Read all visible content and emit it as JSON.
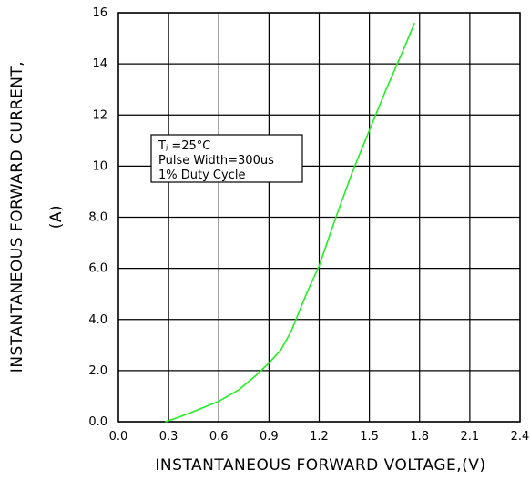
{
  "chart_data": {
    "type": "line",
    "xlabel": "INSTANTANEOUS FORWARD VOLTAGE,(V)",
    "ylabel": "INSTANTANEOUS FORWARD CURRENT,",
    "ylabel_unit": "(A)",
    "xlim": [
      0.0,
      2.4
    ],
    "ylim": [
      0,
      16
    ],
    "x_ticks": [
      "0.0",
      "0.3",
      "0.6",
      "0.9",
      "1.2",
      "1.5",
      "1.8",
      "2.1",
      "2.4"
    ],
    "x_tick_values": [
      0.0,
      0.3,
      0.6,
      0.9,
      1.2,
      1.5,
      1.8,
      2.1,
      2.4
    ],
    "y_ticks": [
      "0.0",
      "2.0",
      "4.0",
      "6.0",
      "8.0",
      "10",
      "12",
      "14",
      "16"
    ],
    "y_tick_values": [
      0,
      2,
      4,
      6,
      8,
      10,
      12,
      14,
      16
    ],
    "grid": true,
    "line_color": "#22ee22",
    "series": [
      {
        "x": [
          0.28,
          0.35,
          0.45,
          0.6,
          0.72,
          0.82,
          0.9,
          0.97,
          1.03,
          1.08,
          1.13,
          1.2,
          1.3,
          1.4,
          1.5,
          1.6,
          1.7,
          1.77
        ],
        "y": [
          0.0,
          0.15,
          0.4,
          0.8,
          1.25,
          1.8,
          2.3,
          2.8,
          3.5,
          4.3,
          5.1,
          6.1,
          8.0,
          9.8,
          11.4,
          13.0,
          14.5,
          15.6
        ]
      }
    ],
    "annotation": {
      "lines": [
        "Tⱼ =25°C",
        "Pulse Width=300us",
        "1% Duty Cycle"
      ]
    }
  }
}
